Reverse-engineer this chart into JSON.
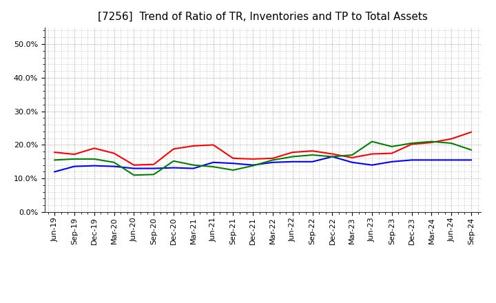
{
  "title": "[7256]  Trend of Ratio of TR, Inventories and TP to Total Assets",
  "x_labels": [
    "Jun-19",
    "Sep-19",
    "Dec-19",
    "Mar-20",
    "Jun-20",
    "Sep-20",
    "Dec-20",
    "Mar-21",
    "Jun-21",
    "Sep-21",
    "Dec-21",
    "Mar-22",
    "Jun-22",
    "Sep-22",
    "Dec-22",
    "Mar-23",
    "Jun-23",
    "Sep-23",
    "Dec-23",
    "Mar-24",
    "Jun-24",
    "Sep-24"
  ],
  "trade_receivables": [
    0.178,
    0.172,
    0.19,
    0.175,
    0.14,
    0.142,
    0.188,
    0.197,
    0.2,
    0.16,
    0.158,
    0.16,
    0.178,
    0.182,
    0.173,
    0.162,
    0.173,
    0.175,
    0.202,
    0.207,
    0.218,
    0.238
  ],
  "inventories": [
    0.12,
    0.136,
    0.138,
    0.136,
    0.13,
    0.13,
    0.132,
    0.13,
    0.148,
    0.145,
    0.14,
    0.148,
    0.15,
    0.15,
    0.165,
    0.148,
    0.14,
    0.15,
    0.155,
    0.155,
    0.155,
    0.155
  ],
  "trade_payables": [
    0.155,
    0.158,
    0.158,
    0.148,
    0.11,
    0.112,
    0.152,
    0.14,
    0.135,
    0.125,
    0.138,
    0.155,
    0.165,
    0.17,
    0.165,
    0.17,
    0.21,
    0.195,
    0.205,
    0.21,
    0.205,
    0.185
  ],
  "tr_color": "#ff0000",
  "inv_color": "#0000ff",
  "tp_color": "#008000",
  "ylim": [
    0.0,
    0.55
  ],
  "yticks": [
    0.0,
    0.1,
    0.2,
    0.3,
    0.4,
    0.5
  ],
  "background_color": "#ffffff",
  "grid_color": "#999999",
  "title_fontsize": 11,
  "tick_fontsize": 8,
  "legend_fontsize": 9
}
